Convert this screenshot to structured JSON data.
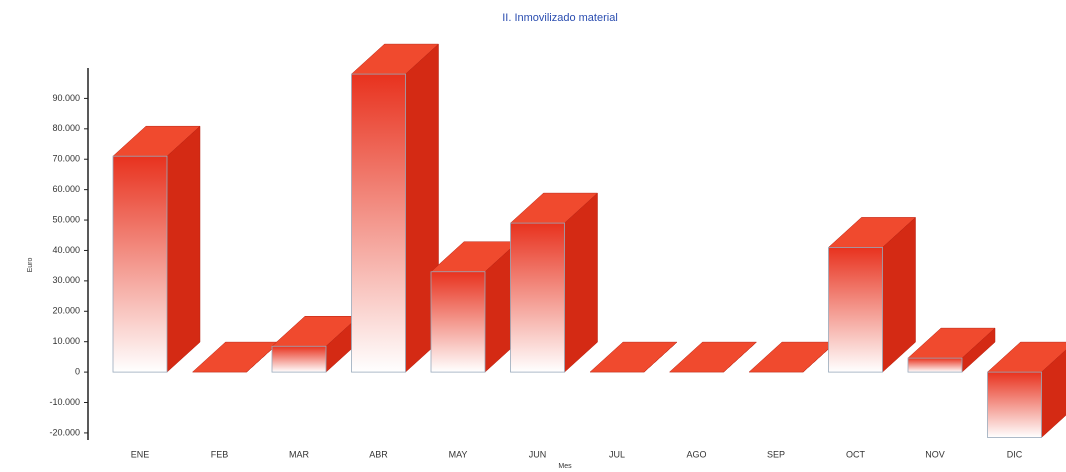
{
  "chart_data": {
    "type": "bar3d",
    "title": "II. Inmovilizado material",
    "y_label": "Euro",
    "x_label": "Mes",
    "categories": [
      "ENE",
      "FEB",
      "MAR",
      "ABR",
      "MAY",
      "JUN",
      "JUL",
      "AGO",
      "SEP",
      "OCT",
      "NOV",
      "DIC"
    ],
    "values": [
      71000,
      0,
      8500,
      98000,
      33000,
      49000,
      0,
      0,
      0,
      41000,
      4600,
      -21500
    ],
    "color": "#e8321e",
    "ylim": [
      -22000,
      100000
    ],
    "yticks": [
      {
        "value": -20000,
        "label": "-20.000"
      },
      {
        "value": -10000,
        "label": "-10.000"
      },
      0,
      {
        "value": 10000,
        "label": "10.000"
      },
      {
        "value": 20000,
        "label": "20.000"
      },
      {
        "value": 30000,
        "label": "30.000"
      },
      {
        "value": 40000,
        "label": "40.000"
      },
      {
        "value": 50000,
        "label": "50.000"
      },
      {
        "value": 60000,
        "label": "60.000"
      },
      {
        "value": 70000,
        "label": "70.000"
      },
      {
        "value": 80000,
        "label": "80.000"
      },
      {
        "value": 90000,
        "label": "90.000"
      }
    ],
    "grid": false
  }
}
